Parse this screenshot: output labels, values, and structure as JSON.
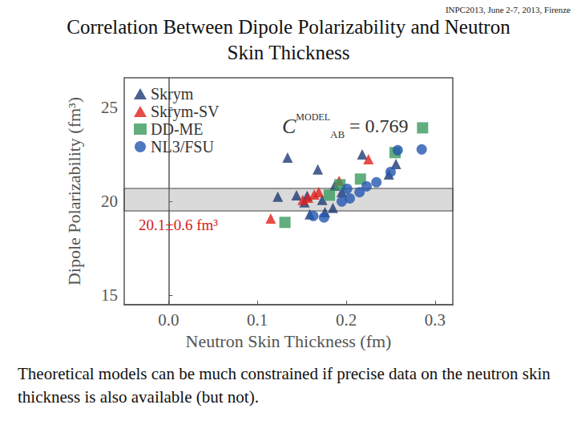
{
  "chart_data": {
    "type": "scatter",
    "title": "Correlation  Between Dipole Polarizability and Neutron Skin Thickness",
    "subtitle": "INPC2013, June 2-7, 2013, Firenze",
    "caption": "Theoretical models can be much constrained if precise data on the neutron skin thickness is also available (but not).",
    "x_label": "Neutron Skin Thickness (fm)",
    "y_label": "Dipole Polarizability (fm³)",
    "xlim": [
      -0.05,
      0.32
    ],
    "xticks": [
      {
        "value": 0,
        "label": "0.0"
      },
      0.1,
      0.2,
      0.3
    ],
    "ylim": [
      14.5,
      26.6
    ],
    "yticks": [
      15,
      20,
      25
    ],
    "grid": false,
    "legend": "upper left",
    "correlation": {
      "symbol": "C",
      "subscript": "AB",
      "superscript": "MODEL",
      "operator": "=",
      "value": 0.769
    },
    "band": {
      "center": 20.1,
      "error": 0.6,
      "label": "20.1±0.6 fm³"
    },
    "series": [
      {
        "name": "Skrym",
        "color": "#1f3a75",
        "marker": "triangle",
        "x": [
          0.123,
          0.134,
          0.144,
          0.153,
          0.159,
          0.156,
          0.168,
          0.173,
          0.176,
          0.185,
          0.187,
          0.195,
          0.218,
          0.248,
          0.256
        ],
        "values": [
          20.26,
          22.35,
          20.34,
          19.96,
          19.32,
          20.3,
          21.71,
          20.09,
          19.44,
          19.66,
          20.85,
          20.51,
          22.52,
          21.45,
          22.0
        ]
      },
      {
        "name": "Skrym-SV",
        "color": "#e0201b",
        "marker": "triangle",
        "x": [
          0.115,
          0.151,
          0.157,
          0.164,
          0.169,
          0.192,
          0.225
        ],
        "values": [
          19.1,
          20.09,
          20.21,
          20.38,
          20.51,
          21.11,
          22.26
        ]
      },
      {
        "name": "DD-ME",
        "color": "#3a9a5f",
        "marker": "square",
        "x": [
          0.131,
          0.181,
          0.193,
          0.216,
          0.255,
          0.286
        ],
        "values": [
          18.89,
          20.34,
          20.9,
          21.2,
          22.61,
          23.93
        ]
      },
      {
        "name": "NL3/FSU",
        "color": "#2456b0",
        "marker": "circle",
        "x": [
          0.163,
          0.175,
          0.195,
          0.204,
          0.201,
          0.223,
          0.234,
          0.25,
          0.258,
          0.285,
          0.215
        ],
        "values": [
          19.23,
          19.15,
          20.0,
          20.17,
          20.68,
          20.81,
          21.03,
          21.58,
          22.74,
          22.78,
          20.5
        ]
      }
    ]
  }
}
